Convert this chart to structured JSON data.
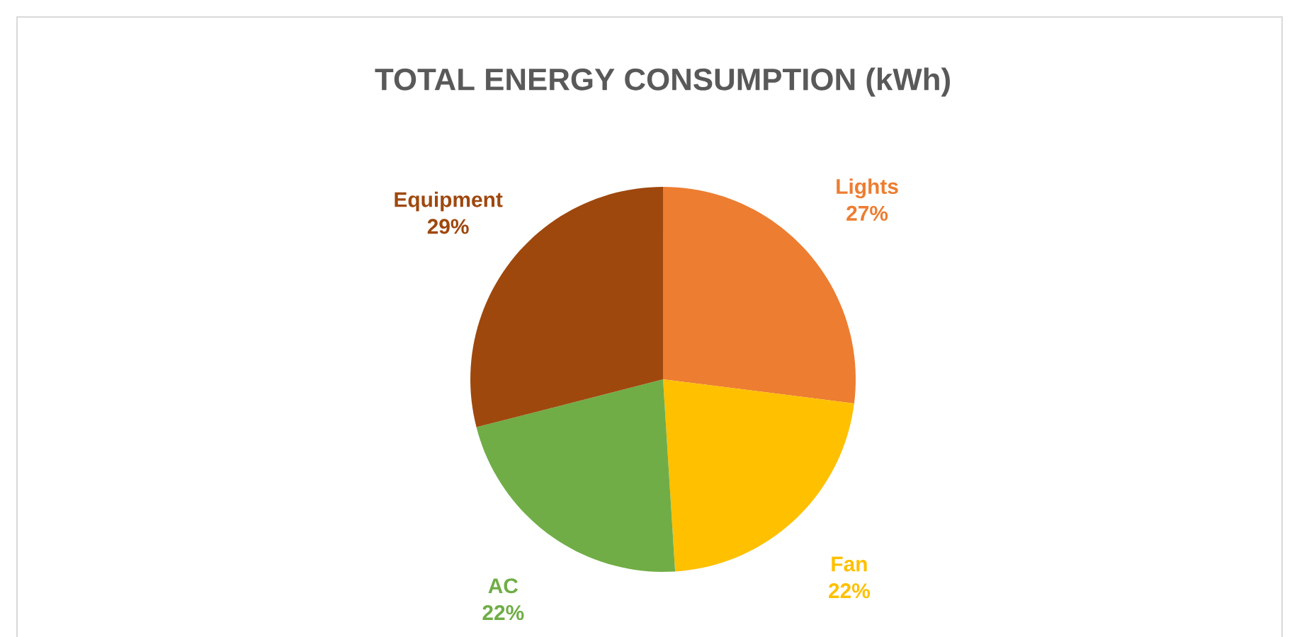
{
  "chart_data": {
    "type": "pie",
    "title": "TOTAL ENERGY CONSUMPTION (kWh)",
    "categories": [
      "Lights",
      "Fan",
      "AC",
      "Equipment"
    ],
    "values": [
      27,
      22,
      22,
      29
    ],
    "value_labels": [
      "27%",
      "22%",
      "22%",
      "29%"
    ],
    "colors": [
      "#ed7d31",
      "#ffc000",
      "#70ad47",
      "#9e480e"
    ]
  }
}
